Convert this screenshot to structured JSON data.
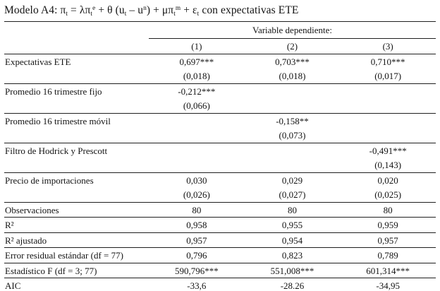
{
  "title_segments": [
    {
      "text": "Modelo A4: π"
    },
    {
      "sub": "t"
    },
    {
      "text": " = λπ"
    },
    {
      "sub": "t"
    },
    {
      "sup": "e"
    },
    {
      "text": " + θ (u"
    },
    {
      "sub": "t"
    },
    {
      "text": " – u"
    },
    {
      "sup": "n"
    },
    {
      "text": ") + μπ"
    },
    {
      "sub": "t"
    },
    {
      "sup": "m"
    },
    {
      "text": " + ε"
    },
    {
      "sub": "t"
    },
    {
      "text": " con expectativas ETE"
    }
  ],
  "table": {
    "dependent_label": "Variable dependiente:",
    "column_headers": [
      "(1)",
      "(2)",
      "(3)"
    ],
    "rows": [
      {
        "label": "Expectativas ETE",
        "values": [
          "0,697***",
          "0,703***",
          "0,710***"
        ],
        "sep": false
      },
      {
        "label": "",
        "values": [
          "(0,018)",
          "(0,018)",
          "(0,017)"
        ],
        "sep": true
      },
      {
        "label": "Promedio 16 trimestre fijo",
        "values": [
          "-0,212***",
          "",
          ""
        ],
        "sep": false
      },
      {
        "label": "",
        "values": [
          "(0,066)",
          "",
          ""
        ],
        "sep": true
      },
      {
        "label": "Promedio 16 trimestre móvil",
        "values": [
          "",
          "-0,158**",
          ""
        ],
        "sep": false
      },
      {
        "label": "",
        "values": [
          "",
          "(0,073)",
          ""
        ],
        "sep": true
      },
      {
        "label": "Filtro de Hodrick y Prescott",
        "values": [
          "",
          "",
          "-0,491***"
        ],
        "sep": false
      },
      {
        "label": "",
        "values": [
          "",
          "",
          "(0,143)"
        ],
        "sep": true
      },
      {
        "label": "Precio de importaciones",
        "values": [
          "0,030",
          "0,029",
          "0,020"
        ],
        "sep": false
      },
      {
        "label": "",
        "values": [
          "(0,026)",
          "(0,027)",
          "(0,025)"
        ],
        "sep": true
      },
      {
        "label": "Observaciones",
        "values": [
          "80",
          "80",
          "80"
        ],
        "sep": true
      },
      {
        "label": "R²",
        "values": [
          "0,958",
          "0,955",
          "0,959"
        ],
        "sep": true
      },
      {
        "label": "R² ajustado",
        "values": [
          "0,957",
          "0,954",
          "0,957"
        ],
        "sep": true
      },
      {
        "label": "Error residual estándar (df = 77)",
        "values": [
          "0,796",
          "0,823",
          "0,789"
        ],
        "sep": true
      },
      {
        "label": "Estadístico F (df = 3; 77)",
        "values": [
          "590,796***",
          "551,008***",
          "601,314***"
        ],
        "sep": true
      },
      {
        "label": "AIC",
        "values": [
          "-33,6",
          "-28.26",
          "-34,95"
        ],
        "sep": true
      }
    ]
  }
}
